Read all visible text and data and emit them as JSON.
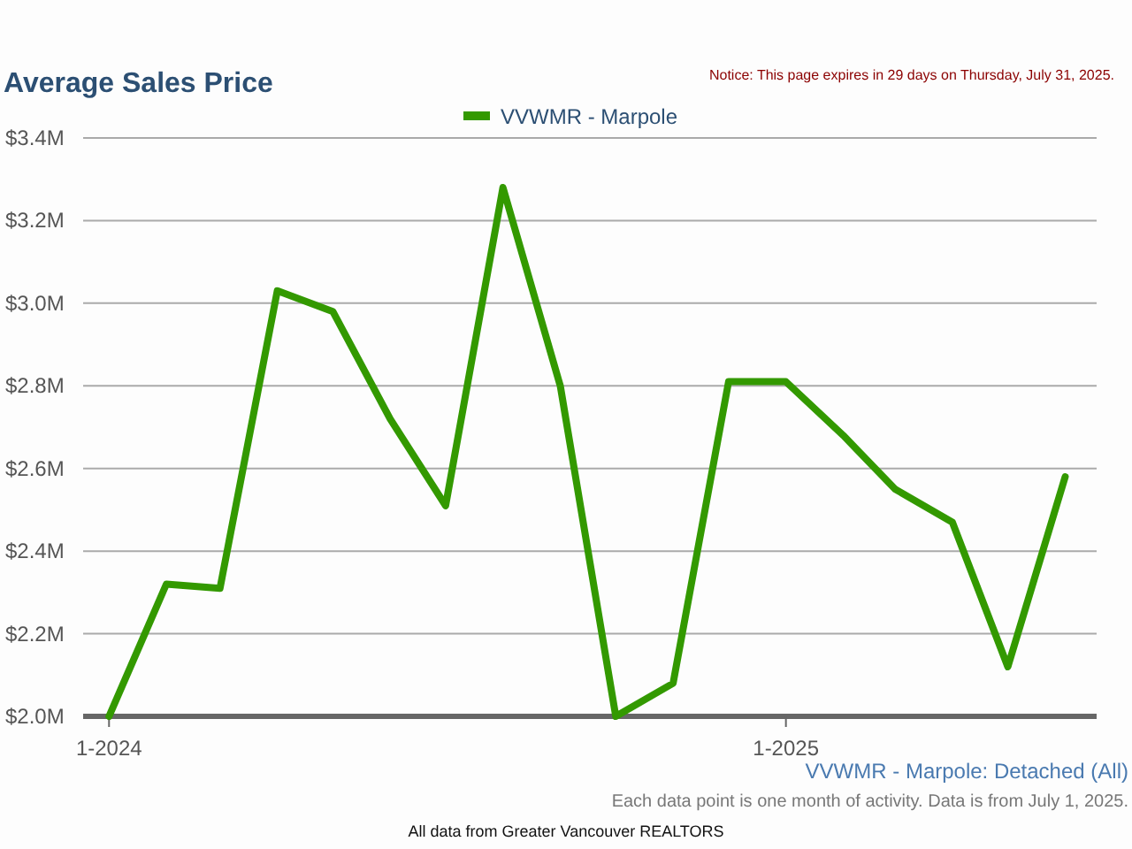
{
  "chart_data": {
    "type": "line",
    "title": "Average Sales Price",
    "x": [
      "2024-01",
      "2024-02",
      "2024-03",
      "2024-04",
      "2024-05",
      "2024-06",
      "2024-07",
      "2024-08",
      "2024-09",
      "2024-10",
      "2024-11",
      "2024-12",
      "2025-01",
      "2025-02",
      "2025-03",
      "2025-04",
      "2025-05",
      "2025-06"
    ],
    "series": [
      {
        "name": "VVWMR - Marpole",
        "color": "#339900",
        "values": [
          2.0,
          2.32,
          2.31,
          3.03,
          2.98,
          2.72,
          2.51,
          3.28,
          2.8,
          2.0,
          2.08,
          2.81,
          2.81,
          2.68,
          2.55,
          2.47,
          2.12,
          2.58
        ]
      }
    ],
    "xlim": [
      "2023-12-18",
      "2025-06-18"
    ],
    "xticks": [
      {
        "value": "2024-01",
        "label": "1-2024"
      },
      {
        "value": "2025-01",
        "label": "1-2025"
      }
    ],
    "ylim": [
      2.0,
      3.4
    ],
    "yticks": [
      {
        "value": 2.0,
        "label": "$2.0M"
      },
      {
        "value": 2.2,
        "label": "$2.2M"
      },
      {
        "value": 2.4,
        "label": "$2.4M"
      },
      {
        "value": 2.6,
        "label": "$2.6M"
      },
      {
        "value": 2.8,
        "label": "$2.8M"
      },
      {
        "value": 3.0,
        "label": "$3.0M"
      },
      {
        "value": 3.2,
        "label": "$3.2M"
      },
      {
        "value": 3.4,
        "label": "$3.4M"
      }
    ],
    "grid": "y",
    "legend": "top",
    "marker": "none",
    "line_style": "solid",
    "annotations": [
      "Notice: This page expires in 29 days on Thursday, July 31, 2025.",
      "VVWMR - Marpole: Detached (All)",
      "Each data point is one month of activity. Data is from July 1, 2025.",
      "All data from Greater Vancouver REALTORS"
    ]
  }
}
